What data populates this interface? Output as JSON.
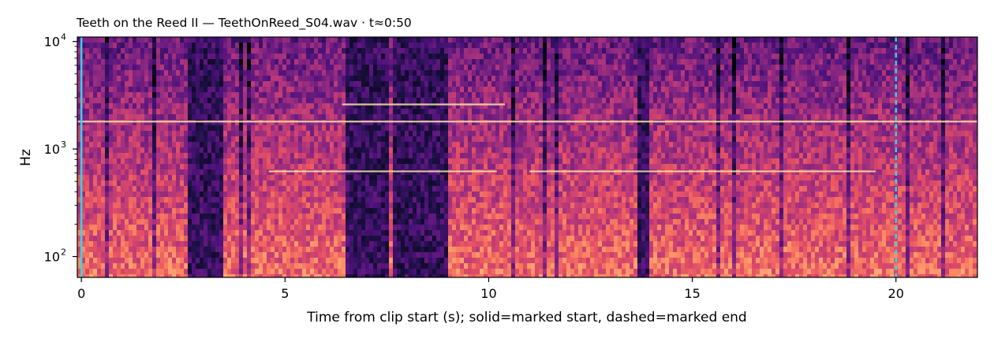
{
  "chart_data": {
    "type": "heatmap",
    "title": "Teeth on the Reed II  —  TeethOnReed_S04.wav · t≈0:50",
    "xlabel": "Time from clip start (s); solid=marked start, dashed=marked end",
    "ylabel": "Hz",
    "xlim": [
      -0.1,
      22.0
    ],
    "ylim": [
      64,
      11000
    ],
    "yscale": "log",
    "x_ticks": [
      0,
      5,
      10,
      15,
      20
    ],
    "x_tick_labels": [
      "0",
      "5",
      "10",
      "15",
      "20"
    ],
    "y_ticks": [
      100,
      1000,
      10000
    ],
    "y_tick_labels": [
      {
        "base": "10",
        "exp": "2"
      },
      {
        "base": "10",
        "exp": "3"
      },
      {
        "base": "10",
        "exp": "4"
      }
    ],
    "colormap": "magma",
    "markers": [
      {
        "x": 0,
        "style": "solid",
        "color": "#34d6ee"
      },
      {
        "x": 20,
        "style": "dashed",
        "color": "#34d6ee"
      }
    ],
    "quiet_regions": [
      [
        2.6,
        3.4
      ],
      [
        6.4,
        7.5
      ],
      [
        7.6,
        9.0
      ],
      [
        13.6,
        13.9
      ]
    ],
    "harmonic_lines": [
      {
        "x": [
          -0.1,
          22.0
        ],
        "y": 1800
      },
      {
        "x": [
          6.4,
          10.4
        ],
        "y": 2600
      },
      {
        "x": [
          4.6,
          10.2
        ],
        "y": 620
      },
      {
        "x": [
          11.0,
          19.5
        ],
        "y": 620
      }
    ]
  }
}
